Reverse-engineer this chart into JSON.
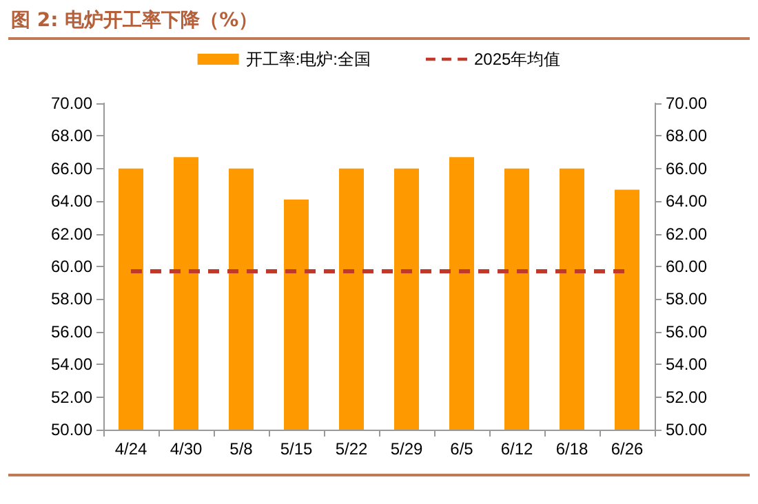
{
  "chart_data": {
    "type": "bar",
    "title": "图 2:  电炉开工率下降（%）",
    "categories": [
      "4/24",
      "4/30",
      "5/8",
      "5/15",
      "5/22",
      "5/29",
      "6/5",
      "6/12",
      "6/18",
      "6/26"
    ],
    "series": [
      {
        "name": "开工率:电炉:全国",
        "color": "#ff9900",
        "values": [
          66.0,
          66.7,
          66.0,
          64.1,
          66.0,
          66.0,
          66.7,
          66.0,
          66.0,
          64.7
        ]
      },
      {
        "name": "2025年均值",
        "type": "line",
        "color": "#c0392b",
        "line_style": "dashed",
        "marker": "none",
        "values": [
          59.7,
          59.7,
          59.7,
          59.7,
          59.7,
          59.7,
          59.7,
          59.7,
          59.7,
          59.7
        ]
      }
    ],
    "ylim": [
      50,
      70
    ],
    "yticks": [
      {
        "value": 50,
        "label": "50.00"
      },
      {
        "value": 52,
        "label": "52.00"
      },
      {
        "value": 54,
        "label": "54.00"
      },
      {
        "value": 56,
        "label": "56.00"
      },
      {
        "value": 58,
        "label": "58.00"
      },
      {
        "value": 60,
        "label": "60.00"
      },
      {
        "value": 62,
        "label": "62.00"
      },
      {
        "value": 64,
        "label": "64.00"
      },
      {
        "value": 66,
        "label": "66.00"
      },
      {
        "value": 68,
        "label": "68.00"
      },
      {
        "value": 70,
        "label": "70.00"
      }
    ],
    "y2lim": [
      50,
      70
    ],
    "y2ticks": [
      {
        "value": 50,
        "label": "50.00"
      },
      {
        "value": 52,
        "label": "52.00"
      },
      {
        "value": 54,
        "label": "54.00"
      },
      {
        "value": 56,
        "label": "56.00"
      },
      {
        "value": 58,
        "label": "58.00"
      },
      {
        "value": 60,
        "label": "60.00"
      },
      {
        "value": 62,
        "label": "62.00"
      },
      {
        "value": 64,
        "label": "64.00"
      },
      {
        "value": 66,
        "label": "66.00"
      },
      {
        "value": 68,
        "label": "68.00"
      },
      {
        "value": 70,
        "label": "70.00"
      }
    ],
    "grid": false,
    "legend": "top"
  }
}
